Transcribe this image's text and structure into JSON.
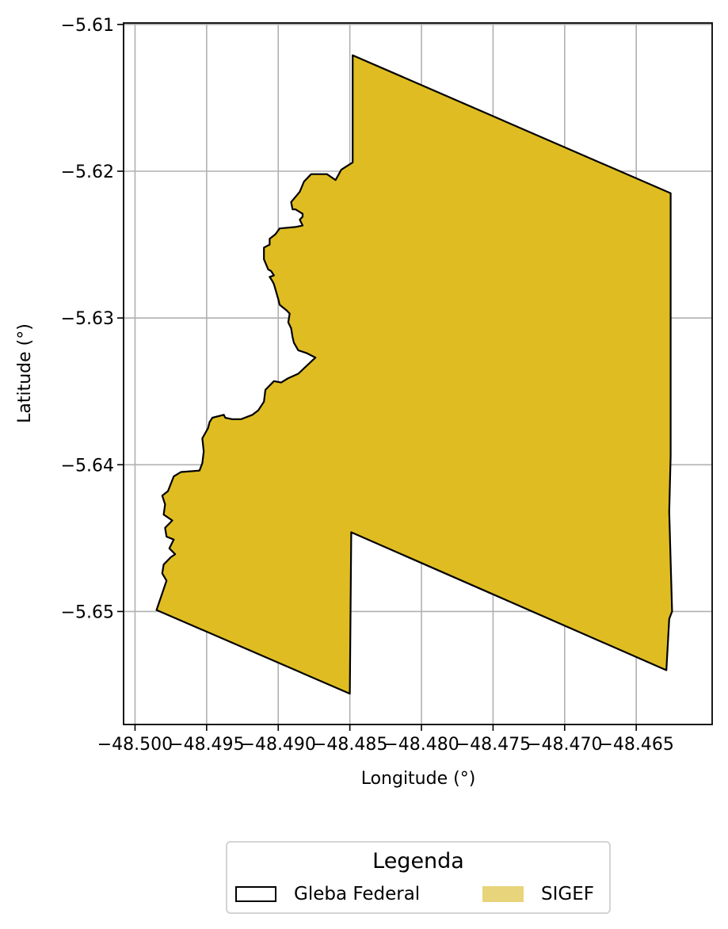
{
  "chart_data": {
    "type": "map",
    "xlabel": "Longitude (°)",
    "ylabel": "Latitude (°)",
    "xlim": [
      -48.5008,
      -48.4597
    ],
    "ylim": [
      -5.6577,
      -5.6099
    ],
    "x_ticks": [
      -48.5,
      -48.495,
      -48.49,
      -48.485,
      -48.48,
      -48.475,
      -48.47,
      -48.465
    ],
    "x_tick_labels": [
      "−48.500",
      "−48.495",
      "−48.490",
      "−48.485",
      "−48.480",
      "−48.475",
      "−48.470",
      "−48.465"
    ],
    "y_ticks": [
      -5.61,
      -5.62,
      -5.63,
      -5.64,
      -5.65
    ],
    "y_tick_labels": [
      "−5.61",
      "−5.62",
      "−5.63",
      "−5.64",
      "−5.65"
    ],
    "grid": true,
    "fill_color": "#dfbd22",
    "edge_color": "#000000",
    "polygon": [
      [
        -48.4848,
        -5.6121
      ],
      [
        -48.4626,
        -5.6215
      ],
      [
        -48.4626,
        -5.6394
      ],
      [
        -48.4627,
        -5.6432
      ],
      [
        -48.4625,
        -5.65
      ],
      [
        -48.4627,
        -5.6505
      ],
      [
        -48.4629,
        -5.654
      ],
      [
        -48.4849,
        -5.6446
      ],
      [
        -48.485,
        -5.6556
      ],
      [
        -48.4985,
        -5.6499
      ],
      [
        -48.4978,
        -5.6479
      ],
      [
        -48.4981,
        -5.6474
      ],
      [
        -48.498,
        -5.6468
      ],
      [
        -48.4975,
        -5.6463
      ],
      [
        -48.4972,
        -5.6461
      ],
      [
        -48.4976,
        -5.6457
      ],
      [
        -48.4973,
        -5.6451
      ],
      [
        -48.4978,
        -5.6449
      ],
      [
        -48.4979,
        -5.6443
      ],
      [
        -48.4974,
        -5.6438
      ],
      [
        -48.498,
        -5.6434
      ],
      [
        -48.4979,
        -5.6427
      ],
      [
        -48.4981,
        -5.6421
      ],
      [
        -48.4977,
        -5.6418
      ],
      [
        -48.4973,
        -5.6408
      ],
      [
        -48.4968,
        -5.6405
      ],
      [
        -48.4955,
        -5.6404
      ],
      [
        -48.4953,
        -5.6399
      ],
      [
        -48.4952,
        -5.6391
      ],
      [
        -48.4953,
        -5.6382
      ],
      [
        -48.4949,
        -5.6375
      ],
      [
        -48.4948,
        -5.6371
      ],
      [
        -48.4946,
        -5.6368
      ],
      [
        -48.4938,
        -5.6366
      ],
      [
        -48.4937,
        -5.6368
      ],
      [
        -48.4932,
        -5.6369
      ],
      [
        -48.4926,
        -5.6369
      ],
      [
        -48.4918,
        -5.6366
      ],
      [
        -48.4914,
        -5.6363
      ],
      [
        -48.491,
        -5.6357
      ],
      [
        -48.4909,
        -5.6349
      ],
      [
        -48.4906,
        -5.6346
      ],
      [
        -48.4903,
        -5.6343
      ],
      [
        -48.4898,
        -5.6344
      ],
      [
        -48.4893,
        -5.6341
      ],
      [
        -48.4886,
        -5.6338
      ],
      [
        -48.4874,
        -5.6327
      ],
      [
        -48.488,
        -5.6324
      ],
      [
        -48.4886,
        -5.6322
      ],
      [
        -48.4889,
        -5.6317
      ],
      [
        -48.489,
        -5.6313
      ],
      [
        -48.4891,
        -5.6307
      ],
      [
        -48.4893,
        -5.6303
      ],
      [
        -48.4892,
        -5.6297
      ],
      [
        -48.4894,
        -5.6295
      ],
      [
        -48.4899,
        -5.6291
      ],
      [
        -48.49,
        -5.6287
      ],
      [
        -48.4903,
        -5.6277
      ],
      [
        -48.4904,
        -5.6275
      ],
      [
        -48.4906,
        -5.6272
      ],
      [
        -48.4903,
        -5.6271
      ],
      [
        -48.4905,
        -5.6268
      ],
      [
        -48.4907,
        -5.6267
      ],
      [
        -48.491,
        -5.626
      ],
      [
        -48.491,
        -5.6252
      ],
      [
        -48.4906,
        -5.625
      ],
      [
        -48.4906,
        -5.6246
      ],
      [
        -48.4902,
        -5.6243
      ],
      [
        -48.4899,
        -5.6239
      ],
      [
        -48.4888,
        -5.6238
      ],
      [
        -48.4883,
        -5.6237
      ],
      [
        -48.4885,
        -5.6233
      ],
      [
        -48.4883,
        -5.6231
      ],
      [
        -48.4883,
        -5.6229
      ],
      [
        -48.4888,
        -5.6226
      ],
      [
        -48.489,
        -5.6226
      ],
      [
        -48.4891,
        -5.6221
      ],
      [
        -48.4885,
        -5.6214
      ],
      [
        -48.4882,
        -5.6207
      ],
      [
        -48.488,
        -5.6205
      ],
      [
        -48.4877,
        -5.6202
      ],
      [
        -48.4866,
        -5.6202
      ],
      [
        -48.486,
        -5.6206
      ],
      [
        -48.4856,
        -5.6199
      ],
      [
        -48.4848,
        -5.6194
      ]
    ]
  },
  "legend": {
    "title": "Legenda",
    "items": [
      {
        "label": "Gleba Federal"
      },
      {
        "label": "SIGEF"
      }
    ]
  }
}
